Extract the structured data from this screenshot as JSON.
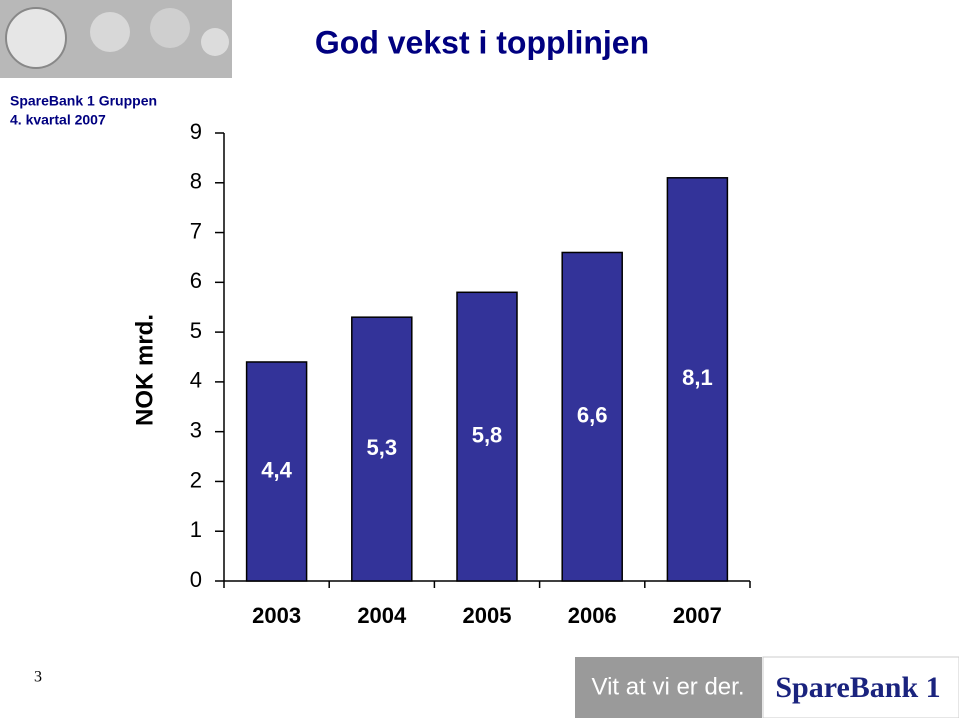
{
  "header": {
    "company": "SpareBank 1 Gruppen",
    "period": "4. kvartal 2007",
    "page_number": "3"
  },
  "footer": {
    "slogan": "Vit at vi er der.",
    "logo": "SpareBank 1"
  },
  "chart_data": {
    "type": "bar",
    "title": "God vekst i topplinjen",
    "y_label": "NOK mrd.",
    "categories": [
      "2003",
      "2004",
      "2005",
      "2006",
      "2007"
    ],
    "values": [
      4.4,
      5.3,
      5.8,
      6.6,
      8.1
    ],
    "value_labels": [
      "4,4",
      "5,3",
      "5,8",
      "6,6",
      "8,1"
    ],
    "color": "#333399",
    "ylim": [
      0,
      9
    ],
    "yticks": [
      0,
      1,
      2,
      3,
      4,
      5,
      6,
      7,
      8,
      9
    ],
    "grid": false
  }
}
